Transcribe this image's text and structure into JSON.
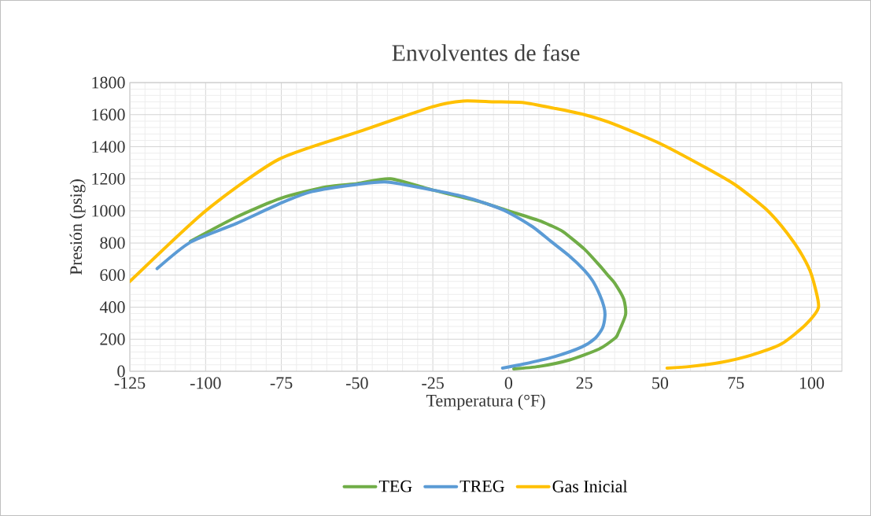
{
  "chart_data": {
    "type": "line",
    "title": "Envolventes de fase",
    "xlabel": "Temperatura (°F)",
    "ylabel": "Presión (psig)",
    "xlim": [
      -125,
      110
    ],
    "xticks": [
      -125,
      -100,
      -75,
      -50,
      -25,
      0,
      25,
      50,
      75,
      100
    ],
    "ylim": [
      0,
      1800
    ],
    "yticks": [
      0,
      200,
      400,
      600,
      800,
      1000,
      1200,
      1400,
      1600,
      1800
    ],
    "grid": true,
    "legend": "bottom",
    "marker": "none",
    "line_style": "solid",
    "series": [
      {
        "name": "TEG",
        "color": "#70ad47",
        "x": [
          -105,
          -90,
          -75,
          -60,
          -50,
          -39,
          -25,
          -10,
          0,
          10,
          13.9,
          18,
          25,
          30,
          32.8,
          35,
          38,
          38.6,
          36,
          35.1,
          30,
          20,
          10,
          1.7
        ],
        "values": [
          810,
          960,
          1080,
          1150,
          1170,
          1200,
          1130,
          1060,
          1000,
          940,
          909,
          870,
          762,
          660,
          598,
          550,
          450,
          353,
          230,
          206,
          140,
          70,
          30,
          15
        ]
      },
      {
        "name": "TREG",
        "color": "#5b9bd5",
        "x": [
          -116,
          -105,
          -90,
          -75,
          -65,
          -50,
          -40,
          -25,
          -15,
          -5,
          0,
          8,
          13.9,
          20,
          25,
          27.7,
          30,
          31.5,
          31.8,
          31,
          28.6,
          24,
          15,
          5,
          -2
        ],
        "values": [
          640,
          805,
          920,
          1050,
          1120,
          1165,
          1180,
          1130,
          1090,
          1030,
          990,
          900,
          811,
          720,
          630,
          565,
          480,
          400,
          345,
          270,
          206,
          150,
          90,
          45,
          20
        ]
      },
      {
        "name": "Gas Inicial",
        "color": "#ffc000",
        "x": [
          -125,
          -100,
          -76,
          -50,
          -25,
          -15,
          -5,
          5,
          15,
          25,
          35,
          50,
          65,
          75,
          85,
          92,
          97,
          100,
          102.3,
          98,
          90,
          80,
          70,
          60,
          52.3
        ],
        "values": [
          560,
          1000,
          1320,
          1490,
          1650,
          1685,
          1680,
          1675,
          1640,
          1600,
          1540,
          1420,
          1270,
          1160,
          1010,
          860,
          720,
          600,
          402,
          290,
          170,
          100,
          55,
          30,
          20
        ]
      }
    ]
  }
}
